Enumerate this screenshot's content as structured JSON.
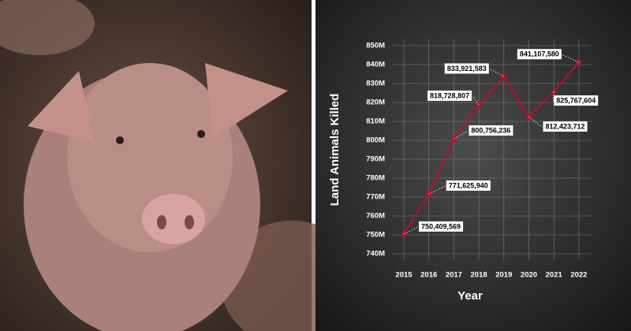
{
  "chart_data": {
    "type": "line",
    "y_label": "Land Animals Killed",
    "x_label": "Year",
    "categories": [
      "2015",
      "2016",
      "2017",
      "2018",
      "2019",
      "2020",
      "2021",
      "2022"
    ],
    "values": [
      750409569,
      771625940,
      800756236,
      818728807,
      833921583,
      812423712,
      825767604,
      841107580
    ],
    "value_labels": [
      "750,409,569",
      "771,625,940",
      "800,756,236",
      "818,728,807",
      "833,921,583",
      "812,423,712",
      "825,767,604",
      "841,107,580"
    ],
    "color": "#b3142b",
    "ylim": [
      740000000,
      850000000
    ],
    "yticks": [
      {
        "value": 740000000,
        "label": "740M"
      },
      {
        "value": 750000000,
        "label": "750M"
      },
      {
        "value": 760000000,
        "label": "760M"
      },
      {
        "value": 770000000,
        "label": "770M"
      },
      {
        "value": 780000000,
        "label": "780M"
      },
      {
        "value": 790000000,
        "label": "790M"
      },
      {
        "value": 800000000,
        "label": "800M"
      },
      {
        "value": 810000000,
        "label": "810M"
      },
      {
        "value": 820000000,
        "label": "820M"
      },
      {
        "value": 830000000,
        "label": "830M"
      },
      {
        "value": 840000000,
        "label": "840M"
      },
      {
        "value": 850000000,
        "label": "850M"
      }
    ],
    "grid": true
  }
}
